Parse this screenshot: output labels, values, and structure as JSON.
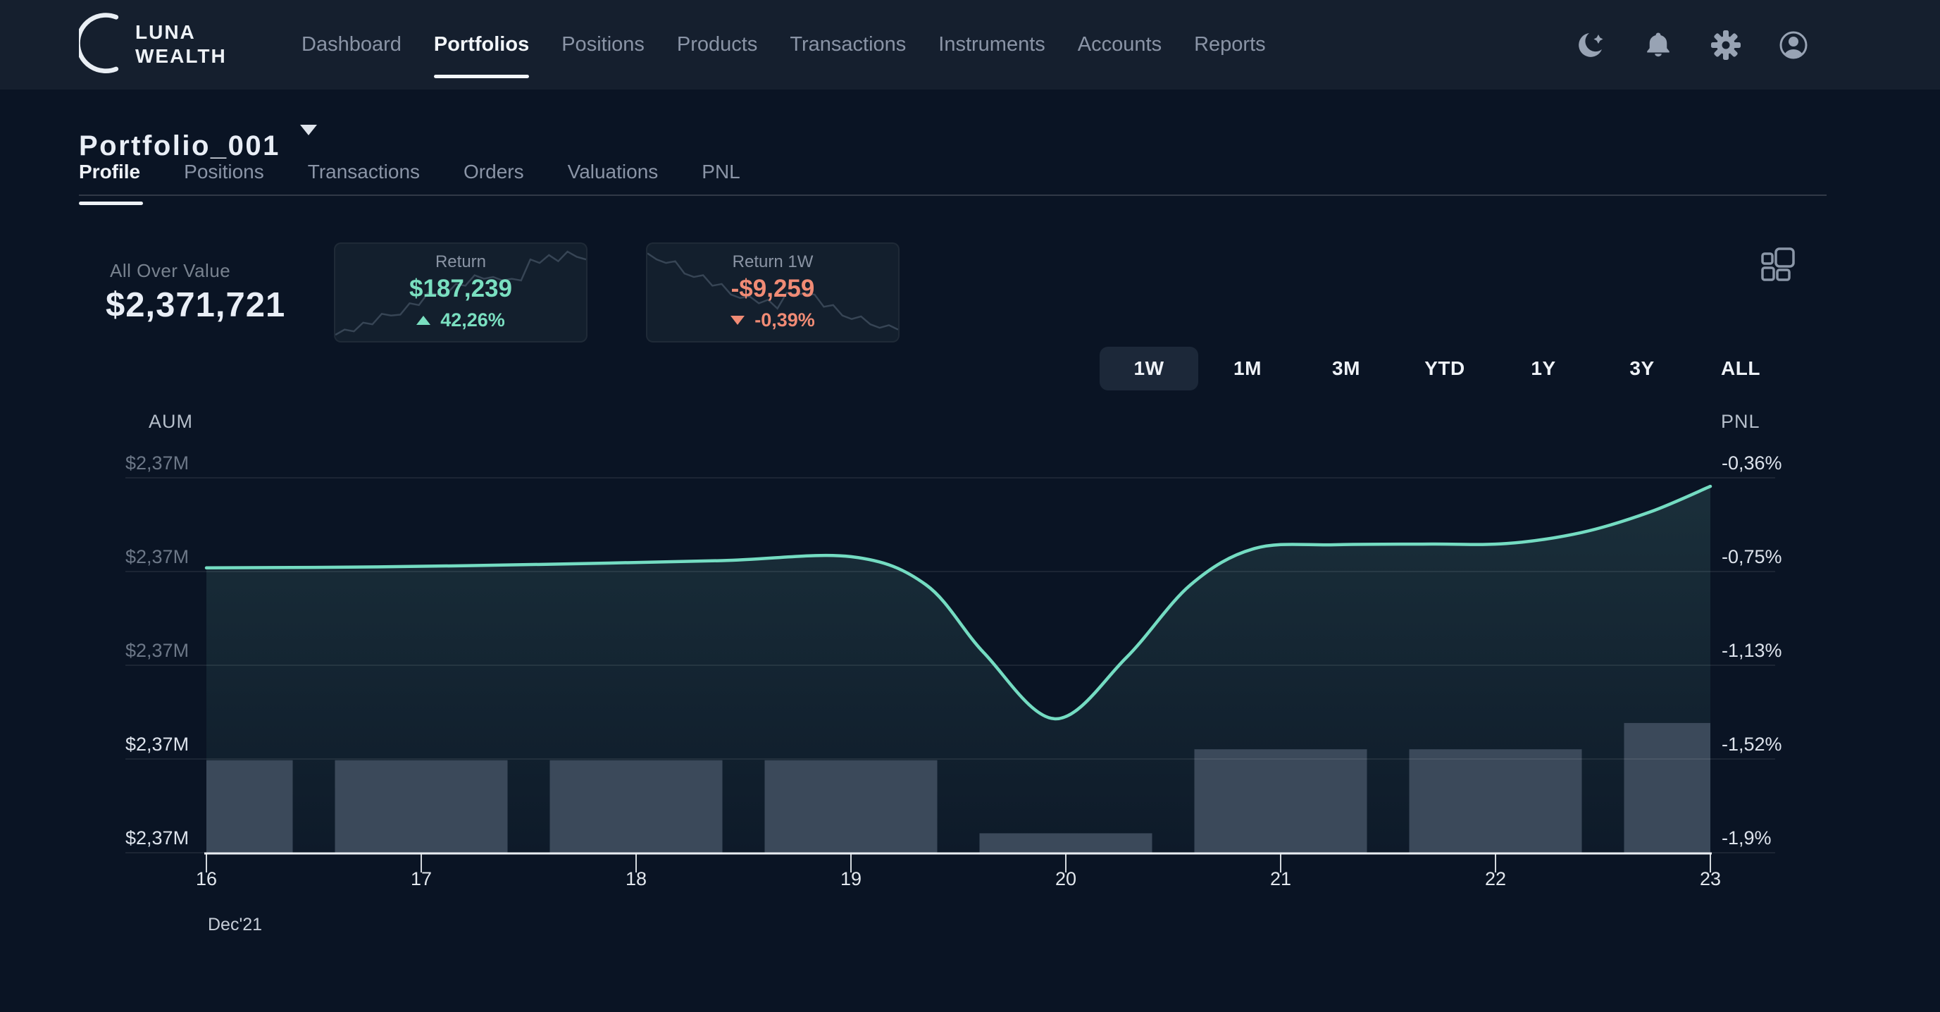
{
  "brand": {
    "line1": "LUNA",
    "line2": "WEALTH"
  },
  "nav": {
    "items": [
      {
        "label": "Dashboard",
        "active": false
      },
      {
        "label": "Portfolios",
        "active": true
      },
      {
        "label": "Positions",
        "active": false
      },
      {
        "label": "Products",
        "active": false
      },
      {
        "label": "Transactions",
        "active": false
      },
      {
        "label": "Instruments",
        "active": false
      },
      {
        "label": "Accounts",
        "active": false
      },
      {
        "label": "Reports",
        "active": false
      }
    ],
    "icons": [
      "moon-star",
      "bell",
      "gear",
      "user"
    ]
  },
  "page": {
    "title": "Portfolio_001"
  },
  "tabs": [
    {
      "label": "Profile",
      "active": true
    },
    {
      "label": "Positions",
      "active": false
    },
    {
      "label": "Transactions",
      "active": false
    },
    {
      "label": "Orders",
      "active": false
    },
    {
      "label": "Valuations",
      "active": false
    },
    {
      "label": "PNL",
      "active": false
    }
  ],
  "overview": {
    "all_over_value_label": "All Over Value",
    "all_over_value": "$2,371,721",
    "cards": [
      {
        "label": "Return",
        "value": "$187,239",
        "change": "42,26%",
        "direction": "up",
        "color": "#7adfc0",
        "sparkline": [
          0.04,
          0.1,
          0.08,
          0.18,
          0.16,
          0.28,
          0.26,
          0.27,
          0.4,
          0.38,
          0.52,
          0.5,
          0.51,
          0.62,
          0.6,
          0.72,
          0.68,
          0.7,
          0.66,
          0.68,
          0.66,
          0.9,
          0.86,
          0.95,
          0.88,
          0.99,
          0.93,
          0.9
        ]
      },
      {
        "label": "Return 1W",
        "value": "-$9,259",
        "change": "-0,39%",
        "direction": "down",
        "color": "#f08b75",
        "sparkline": [
          0.97,
          0.9,
          0.86,
          0.88,
          0.74,
          0.7,
          0.72,
          0.6,
          0.62,
          0.5,
          0.46,
          0.48,
          0.4,
          0.44,
          0.34,
          0.52,
          0.5,
          0.51,
          0.5,
          0.36,
          0.38,
          0.26,
          0.22,
          0.25,
          0.16,
          0.12,
          0.15,
          0.1
        ]
      }
    ]
  },
  "range_selector": {
    "options": [
      "1W",
      "1M",
      "3M",
      "YTD",
      "1Y",
      "3Y",
      "ALL"
    ],
    "active": "1W"
  },
  "chart_data": {
    "type": "line+bar",
    "left_axis": {
      "label": "AUM",
      "tick_labels": [
        "$2,37M",
        "$2,37M",
        "$2,37M",
        "$2,37M",
        "$2,37M"
      ],
      "highlight_from_index": 3,
      "muted_color": "#6c7787",
      "highlight_color": "#dde3ec"
    },
    "right_axis": {
      "label": "PNL",
      "tick_labels": [
        "-0,36%",
        "-0,75%",
        "-1,13%",
        "-1,52%",
        "-1,9%"
      ],
      "tick_values": [
        -0.36,
        -0.75,
        -1.13,
        -1.52,
        -1.9
      ],
      "color": "#dde3ec"
    },
    "x_axis": {
      "tick_labels": [
        "16",
        "17",
        "18",
        "19",
        "20",
        "21",
        "22",
        "23"
      ],
      "caption": "Dec'21"
    },
    "line_series": {
      "name": "PNL",
      "color": "#74dcc2",
      "points": [
        [
          16,
          -0.73
        ],
        [
          16.8,
          -0.726
        ],
        [
          17.6,
          -0.715
        ],
        [
          18.4,
          -0.7
        ],
        [
          19.0,
          -0.684
        ],
        [
          19.35,
          -0.8
        ],
        [
          19.62,
          -1.08
        ],
        [
          19.95,
          -1.35
        ],
        [
          20.28,
          -1.1
        ],
        [
          20.58,
          -0.8
        ],
        [
          20.88,
          -0.65
        ],
        [
          21.25,
          -0.635
        ],
        [
          21.7,
          -0.632
        ],
        [
          22.05,
          -0.63
        ],
        [
          22.4,
          -0.585
        ],
        [
          22.72,
          -0.5
        ],
        [
          23,
          -0.395
        ]
      ]
    },
    "bar_series": {
      "name": "AUM",
      "color": "#3e4c5d",
      "base_value": -1.9,
      "categories": [
        16,
        17,
        18,
        19,
        20,
        21,
        22,
        23
      ],
      "top_values": [
        -1.52,
        -1.52,
        -1.52,
        -1.52,
        -1.82,
        -1.475,
        -1.475,
        -1.367
      ]
    },
    "grid": true,
    "legend": false
  }
}
